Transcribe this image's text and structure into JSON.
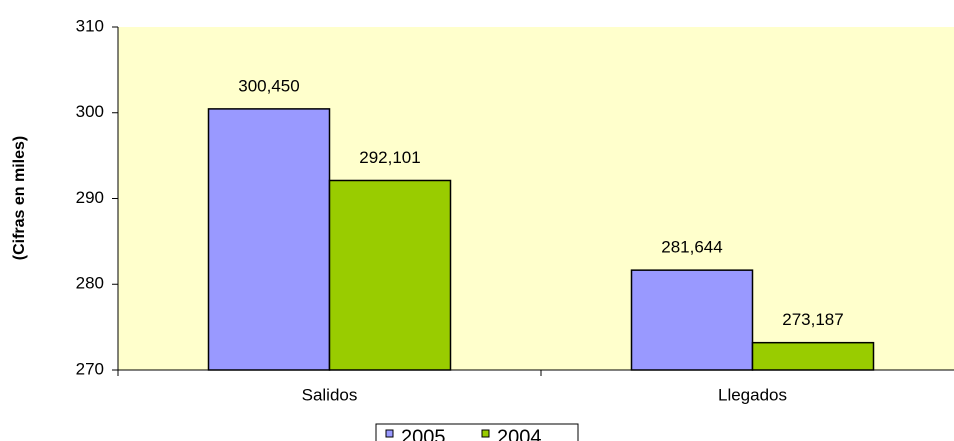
{
  "chart_data": {
    "type": "bar",
    "ylabel": "(Cifras en miles)",
    "categories": [
      "Salidos",
      "Llegados"
    ],
    "series": [
      {
        "name": "2005",
        "color": "#9999ff",
        "values": [
          300.45,
          281.644
        ],
        "value_labels": [
          "300,450",
          "281,644"
        ]
      },
      {
        "name": "2004",
        "color": "#99cc00",
        "values": [
          292.101,
          273.187
        ],
        "value_labels": [
          "292,101",
          "273,187"
        ]
      }
    ],
    "ylim": [
      270,
      310
    ],
    "yticks": [
      270,
      280,
      290,
      300,
      310
    ],
    "background": "#ffffcc",
    "legend": "bottom"
  }
}
